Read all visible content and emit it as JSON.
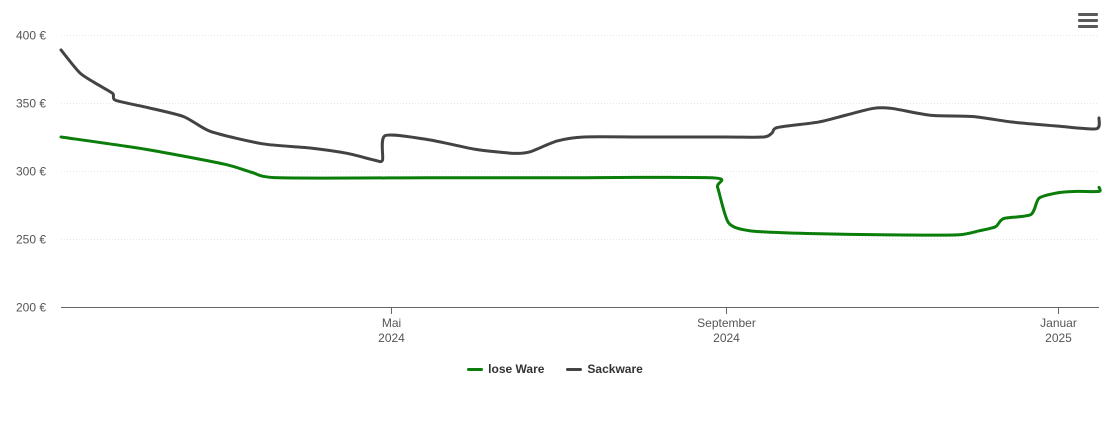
{
  "chart_data": {
    "type": "line",
    "title": "",
    "xlabel": "",
    "ylabel": "",
    "ylim": [
      200,
      400
    ],
    "y_ticks": [
      "200 €",
      "250 €",
      "300 €",
      "350 €",
      "400 €"
    ],
    "y_tick_values": [
      200,
      250,
      300,
      350,
      400
    ],
    "x_range": [
      "2024-01-01",
      "2025-01-16"
    ],
    "x_ticks": [
      {
        "date": "2024-05-01",
        "line1": "Mai",
        "line2": "2024"
      },
      {
        "date": "2024-09-01",
        "line1": "September",
        "line2": "2024"
      },
      {
        "date": "2025-01-01",
        "line1": "Januar",
        "line2": "2025"
      }
    ],
    "grid": true,
    "legend_placement": "bottom-center",
    "series": [
      {
        "name": "lose Ware",
        "color": "#0a7d0a",
        "points": [
          [
            "2024-01-01",
            325
          ],
          [
            "2024-02-01",
            316
          ],
          [
            "2024-03-01",
            305
          ],
          [
            "2024-03-11",
            299
          ],
          [
            "2024-03-21",
            295
          ],
          [
            "2024-05-15",
            295
          ],
          [
            "2024-07-01",
            295
          ],
          [
            "2024-08-27",
            295
          ],
          [
            "2024-08-29",
            288
          ],
          [
            "2024-09-02",
            262
          ],
          [
            "2024-09-10",
            256
          ],
          [
            "2024-10-01",
            254
          ],
          [
            "2024-11-01",
            253
          ],
          [
            "2024-11-25",
            253
          ],
          [
            "2024-12-03",
            256
          ],
          [
            "2024-12-09",
            259
          ],
          [
            "2024-12-12",
            265
          ],
          [
            "2024-12-22",
            268
          ],
          [
            "2024-12-25",
            280
          ],
          [
            "2025-01-01",
            284
          ],
          [
            "2025-01-08",
            285
          ],
          [
            "2025-01-16",
            285
          ],
          [
            "2025-01-16",
            288
          ]
        ]
      },
      {
        "name": "Sackware",
        "color": "#434343",
        "points": [
          [
            "2024-01-01",
            389
          ],
          [
            "2024-01-08",
            372
          ],
          [
            "2024-01-15",
            363
          ],
          [
            "2024-01-20",
            357
          ],
          [
            "2024-01-21",
            352
          ],
          [
            "2024-02-01",
            347
          ],
          [
            "2024-02-15",
            340
          ],
          [
            "2024-02-25",
            329
          ],
          [
            "2024-03-15",
            320
          ],
          [
            "2024-04-01",
            317
          ],
          [
            "2024-04-15",
            313
          ],
          [
            "2024-04-25",
            308
          ],
          [
            "2024-04-28",
            308
          ],
          [
            "2024-04-29",
            326
          ],
          [
            "2024-05-15",
            323
          ],
          [
            "2024-06-01",
            316
          ],
          [
            "2024-06-15",
            313
          ],
          [
            "2024-06-21",
            314
          ],
          [
            "2024-07-01",
            322
          ],
          [
            "2024-07-11",
            325
          ],
          [
            "2024-08-01",
            325
          ],
          [
            "2024-09-01",
            325
          ],
          [
            "2024-09-15",
            325
          ],
          [
            "2024-09-18",
            328
          ],
          [
            "2024-09-20",
            332
          ],
          [
            "2024-10-05",
            336
          ],
          [
            "2024-10-15",
            341
          ],
          [
            "2024-10-25",
            346
          ],
          [
            "2024-11-01",
            346
          ],
          [
            "2024-11-15",
            341
          ],
          [
            "2024-12-01",
            340
          ],
          [
            "2024-12-15",
            336
          ],
          [
            "2025-01-01",
            333
          ],
          [
            "2025-01-15",
            331
          ],
          [
            "2025-01-16",
            339
          ]
        ]
      }
    ]
  },
  "ui": {
    "menu_icon": "hamburger-menu-icon"
  }
}
